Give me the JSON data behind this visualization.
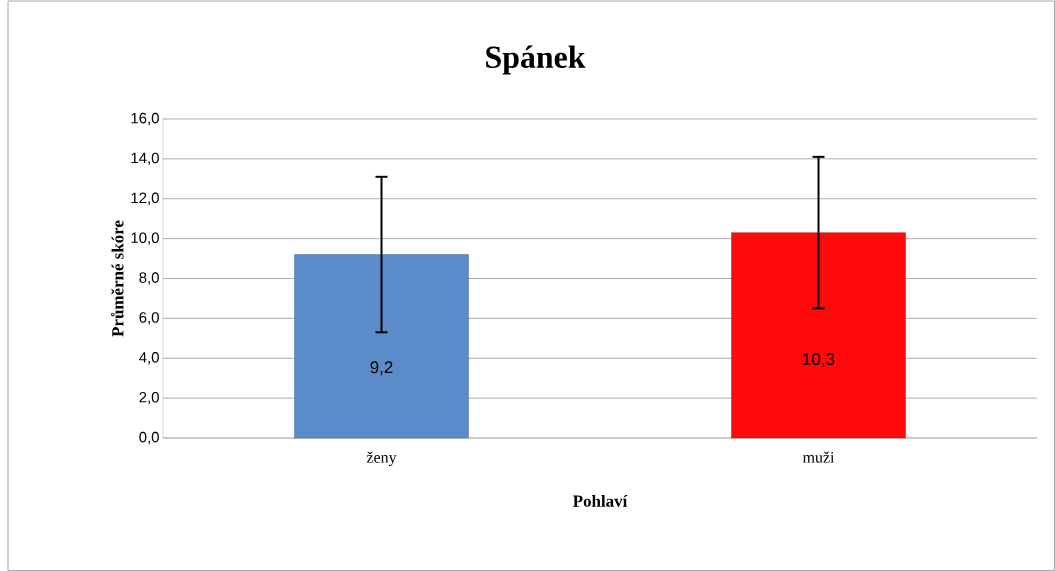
{
  "chart_data": {
    "type": "bar",
    "title": "Spánek",
    "xlabel": "Pohlaví",
    "ylabel": "Průměrné skóre",
    "categories": [
      "ženy",
      "muži"
    ],
    "values": [
      9.2,
      10.3
    ],
    "colors": [
      "#5b8bc9",
      "#ff0a0a"
    ],
    "errors": [
      3.9,
      3.8
    ],
    "value_labels": [
      "9,2",
      "10,3"
    ],
    "ylim": [
      0,
      16
    ],
    "yticks": [
      {
        "value": 0,
        "label": "0,0"
      },
      {
        "value": 2,
        "label": "2,0"
      },
      {
        "value": 4,
        "label": "4,0"
      },
      {
        "value": 6,
        "label": "6,0"
      },
      {
        "value": 8,
        "label": "8,0"
      },
      {
        "value": 10,
        "label": "10,0"
      },
      {
        "value": 12,
        "label": "12,0"
      },
      {
        "value": 14,
        "label": "14,0"
      },
      {
        "value": 16,
        "label": "16,0"
      }
    ],
    "grid": "y"
  }
}
